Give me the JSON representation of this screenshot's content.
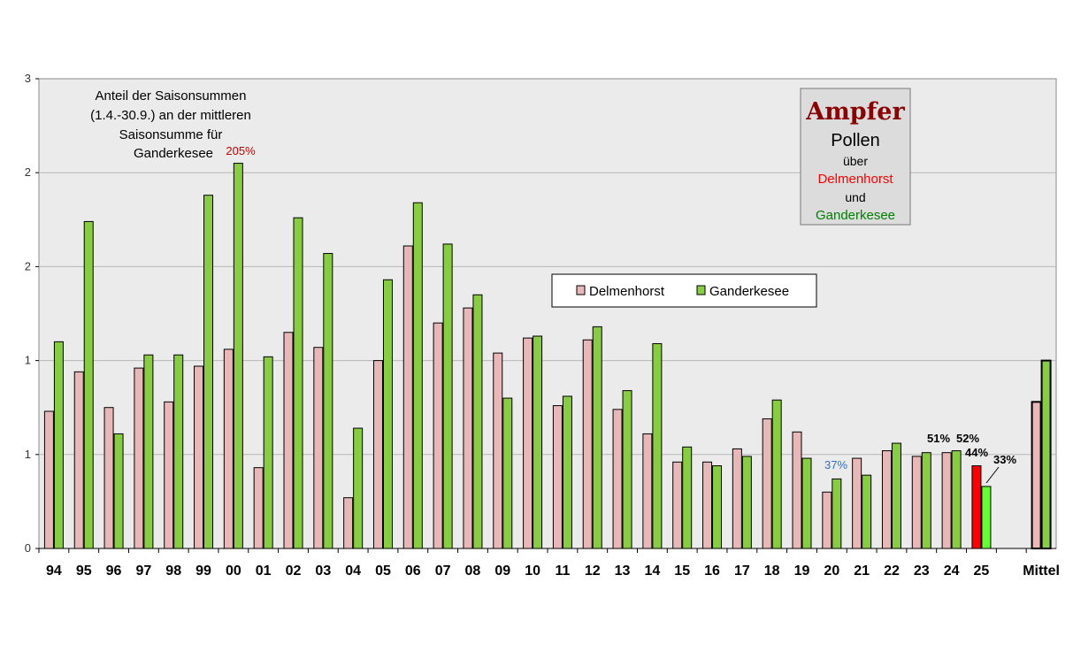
{
  "chart_data": {
    "type": "bar",
    "categories": [
      "94",
      "95",
      "96",
      "97",
      "98",
      "99",
      "00",
      "01",
      "02",
      "03",
      "04",
      "05",
      "06",
      "07",
      "08",
      "09",
      "10",
      "11",
      "12",
      "13",
      "14",
      "15",
      "16",
      "17",
      "18",
      "19",
      "20",
      "21",
      "22",
      "23",
      "24",
      "25",
      "",
      "Mittel"
    ],
    "series": [
      {
        "name": "Delmenhorst",
        "color": "#e8b8b8",
        "values": [
          0.73,
          0.94,
          0.75,
          0.96,
          0.78,
          0.97,
          1.06,
          0.43,
          1.15,
          1.07,
          0.27,
          1.0,
          1.61,
          1.2,
          1.28,
          1.04,
          1.12,
          0.76,
          1.11,
          0.74,
          0.61,
          0.46,
          0.46,
          0.53,
          0.69,
          0.62,
          0.3,
          0.48,
          0.52,
          0.49,
          0.51,
          0.44,
          null,
          0.78
        ]
      },
      {
        "name": "Ganderkesee",
        "color": "#88cc44",
        "values": [
          1.1,
          1.74,
          0.61,
          1.03,
          1.03,
          1.88,
          2.05,
          1.02,
          1.76,
          1.57,
          0.64,
          1.43,
          1.84,
          1.62,
          1.35,
          0.8,
          1.13,
          0.81,
          1.18,
          0.84,
          1.09,
          0.54,
          0.44,
          0.49,
          0.79,
          0.48,
          0.37,
          0.39,
          0.56,
          0.51,
          0.52,
          0.33,
          null,
          1.0
        ]
      }
    ],
    "highlight": {
      "category": "25",
      "colors": {
        "Delmenhorst": "#ff0000",
        "Ganderkesee": "#66ff33"
      }
    },
    "ylim": [
      0,
      2.5
    ],
    "yticks": [
      0,
      0.5,
      1,
      1.5,
      2,
      2.5
    ],
    "ytick_labels": [
      "0",
      "1",
      "1",
      "2",
      "2",
      "3"
    ],
    "grid": true,
    "plot_background": "#ebebeb",
    "annotations": {
      "val_00": "205%",
      "val_20": "37%",
      "val_23": "51%",
      "val_24": "52%",
      "val_25_d": "44%",
      "val_25_g": "33%"
    },
    "note_lines": [
      "Anteil der Saisonsummen",
      "(1.4.-30.9.) an der mittleren",
      "Saisonsumme  für",
      "Ganderkesee"
    ],
    "title_box": {
      "line1": "Ampfer",
      "line2": "Pollen",
      "line3": "über",
      "line4": "Delmenhorst",
      "line5": "und",
      "line6": "Ganderkesee"
    },
    "legend": {
      "placement": "center-top",
      "items": [
        "Delmenhorst",
        "Ganderkesee"
      ]
    }
  }
}
